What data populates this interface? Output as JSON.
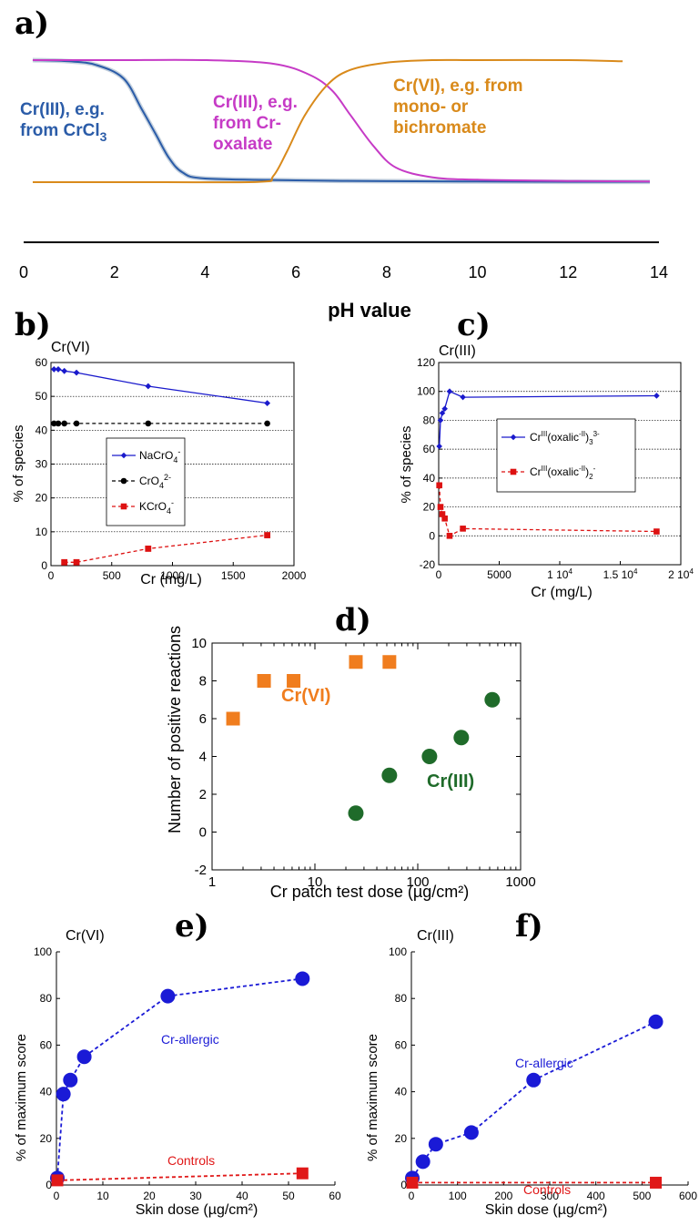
{
  "chart_data": [
    {
      "panel": "a)",
      "type": "line",
      "xlabel": "pH value",
      "xticks": [
        0,
        2,
        4,
        6,
        8,
        10,
        12,
        14
      ],
      "xlim": [
        0,
        14
      ],
      "series": [
        {
          "name": "Cr(III), e.g. from CrCl3",
          "label_lines": [
            "Cr(III), e.g.",
            "from CrCl",
            "3"
          ],
          "color": "#2b5ca8",
          "x": [
            0.2,
            1,
            1.6,
            2.2,
            2.6,
            2.9,
            3.2,
            3.5,
            4,
            6,
            8,
            10,
            12,
            13.8
          ],
          "y": [
            100,
            99,
            96,
            85,
            60,
            40,
            20,
            8,
            3,
            1.5,
            0.8,
            0.5,
            0.3,
            0.3
          ]
        },
        {
          "name": "Cr(III), e.g. from Cr-oxalate",
          "label_lines": [
            "Cr(III), e.g.",
            "from Cr-",
            "oxalate"
          ],
          "color": "#c63bc6",
          "x": [
            0.2,
            2,
            4,
            5.5,
            6.3,
            6.8,
            7.2,
            7.7,
            8.2,
            9,
            10,
            12,
            13.8
          ],
          "y": [
            100,
            100,
            100,
            97,
            88,
            75,
            55,
            30,
            12,
            4,
            2,
            1,
            0.5
          ]
        },
        {
          "name": "Cr(VI), e.g. from mono- or bichromate",
          "label_lines": [
            "Cr(VI), e.g. from",
            "mono- or",
            "bichromate"
          ],
          "color": "#d98a1b",
          "x": [
            0.2,
            3,
            5.2,
            5.5,
            5.8,
            6.2,
            6.7,
            7.2,
            8,
            9,
            10,
            12,
            13.2
          ],
          "y": [
            0,
            0,
            0.3,
            5,
            25,
            55,
            80,
            92,
            98,
            100,
            100,
            100,
            99
          ]
        }
      ]
    },
    {
      "panel": "b)",
      "type": "line",
      "title": "Cr(VI)",
      "xlabel": "Cr (mg/L)",
      "ylabel": "% of species",
      "xlim": [
        0,
        2000
      ],
      "ylim": [
        0,
        60
      ],
      "xticks": [
        "0",
        "500",
        "1000",
        "1500",
        "2000"
      ],
      "yticks": [
        "0",
        "10",
        "20",
        "30",
        "40",
        "50",
        "60"
      ],
      "grid": "horizontal dotted",
      "legend_position": "center-left",
      "series": [
        {
          "name_base": "NaCrO",
          "name_sub": "4",
          "name_sup": "-",
          "color": "#1a1acc",
          "marker": "diamond",
          "dash": "solid",
          "x": [
            25,
            60,
            110,
            210,
            800,
            1780
          ],
          "y": [
            58,
            58,
            57.5,
            57,
            53,
            48
          ]
        },
        {
          "name_base": "CrO",
          "name_sub": "4",
          "name_sup": "2-",
          "color": "#000000",
          "marker": "circle",
          "dash": "dashed",
          "x": [
            25,
            60,
            110,
            210,
            800,
            1780
          ],
          "y": [
            42,
            42,
            42,
            42,
            42,
            42
          ]
        },
        {
          "name_base": "KCrO",
          "name_sub": "4",
          "name_sup": "-",
          "color": "#dd1111",
          "marker": "square",
          "dash": "dashed",
          "x": [
            110,
            210,
            800,
            1780
          ],
          "y": [
            1,
            1,
            5,
            9
          ]
        }
      ]
    },
    {
      "panel": "c)",
      "type": "line",
      "title": "Cr(III)",
      "xlabel": "Cr (mg/L)",
      "ylabel": "% of species",
      "xlim": [
        0,
        20000
      ],
      "ylim": [
        -20,
        120
      ],
      "xtick_values": [
        0,
        5000,
        10000,
        15000,
        20000
      ],
      "xtick_labels": [
        "0",
        "5000",
        "1 10",
        "1.5 10",
        "2 10"
      ],
      "xtick_sups": [
        "",
        "",
        "4",
        "4",
        "4"
      ],
      "yticks": [
        "-20",
        "0",
        "20",
        "40",
        "60",
        "80",
        "100",
        "120"
      ],
      "grid": "horizontal dotted",
      "legend_position": "center",
      "series": [
        {
          "name_parts": [
            "Cr",
            "III",
            "(oxalic",
            "-II",
            ")",
            "3",
            "3-"
          ],
          "color": "#1a1acc",
          "marker": "diamond",
          "dash": "solid",
          "x": [
            50,
            150,
            300,
            500,
            900,
            2000,
            18000
          ],
          "y": [
            62,
            80,
            85,
            88,
            100,
            96,
            97
          ]
        },
        {
          "name_parts": [
            "Cr",
            "III",
            "(oxalic",
            "-II",
            ")",
            "2",
            "-"
          ],
          "color": "#dd1111",
          "marker": "square",
          "dash": "dashed",
          "x": [
            50,
            150,
            300,
            500,
            900,
            2000,
            18000
          ],
          "y": [
            35,
            20,
            15,
            12,
            0,
            5,
            3
          ]
        }
      ]
    },
    {
      "panel": "d)",
      "type": "scatter",
      "xlabel": "Cr patch test dose (µg/cm²)",
      "ylabel": "Number of positive reactions",
      "xscale": "log",
      "xlim": [
        1,
        1000
      ],
      "ylim": [
        -2,
        10
      ],
      "xticks": [
        "1",
        "10",
        "100",
        "1000"
      ],
      "yticks": [
        "-2",
        "0",
        "2",
        "4",
        "6",
        "8",
        "10"
      ],
      "series": [
        {
          "name": "Cr(VI)",
          "color": "#f07d1e",
          "marker": "square",
          "x": [
            1.6,
            3.2,
            6.2,
            25,
            53
          ],
          "y": [
            6,
            8,
            8,
            9,
            9
          ]
        },
        {
          "name": "Cr(III)",
          "color": "#1f6b2a",
          "marker": "circle",
          "x": [
            25,
            53,
            130,
            265,
            530
          ],
          "y": [
            1,
            3,
            4,
            5,
            7
          ]
        }
      ]
    },
    {
      "panel": "e)",
      "type": "line",
      "title": "Cr(VI)",
      "xlabel": "Skin dose (µg/cm²)",
      "ylabel": "% of maximum score",
      "xlim": [
        0,
        60
      ],
      "ylim": [
        0,
        100
      ],
      "xticks": [
        "0",
        "10",
        "20",
        "30",
        "40",
        "50",
        "60"
      ],
      "yticks": [
        "0",
        "20",
        "40",
        "60",
        "80",
        "100"
      ],
      "series": [
        {
          "name": "Cr-allergic",
          "color": "#1a1ad6",
          "marker": "circle",
          "dash": "dashed",
          "x": [
            0.2,
            1.5,
            3,
            6,
            24,
            53
          ],
          "y": [
            3,
            39,
            45,
            55,
            81,
            88.5
          ]
        },
        {
          "name": "Controls",
          "color": "#e01818",
          "marker": "square",
          "dash": "dashed",
          "x": [
            0.2,
            53
          ],
          "y": [
            2,
            5
          ]
        }
      ]
    },
    {
      "panel": "f)",
      "type": "line",
      "title": "Cr(III)",
      "xlabel": "Skin dose (µg/cm²)",
      "ylabel": "% of maximum score",
      "xlim": [
        0,
        600
      ],
      "ylim": [
        0,
        100
      ],
      "xticks": [
        "0",
        "100",
        "200",
        "300",
        "400",
        "500",
        "600"
      ],
      "yticks": [
        "0",
        "20",
        "40",
        "60",
        "80",
        "100"
      ],
      "series": [
        {
          "name": "Cr-allergic",
          "color": "#1a1ad6",
          "marker": "circle",
          "dash": "dashed",
          "x": [
            2,
            25,
            53,
            130,
            265,
            530
          ],
          "y": [
            3,
            10,
            17.5,
            22.5,
            45,
            70
          ]
        },
        {
          "name": "Controls",
          "color": "#e01818",
          "marker": "square",
          "dash": "dashed",
          "x": [
            2,
            530
          ],
          "y": [
            1,
            1
          ]
        }
      ]
    }
  ]
}
